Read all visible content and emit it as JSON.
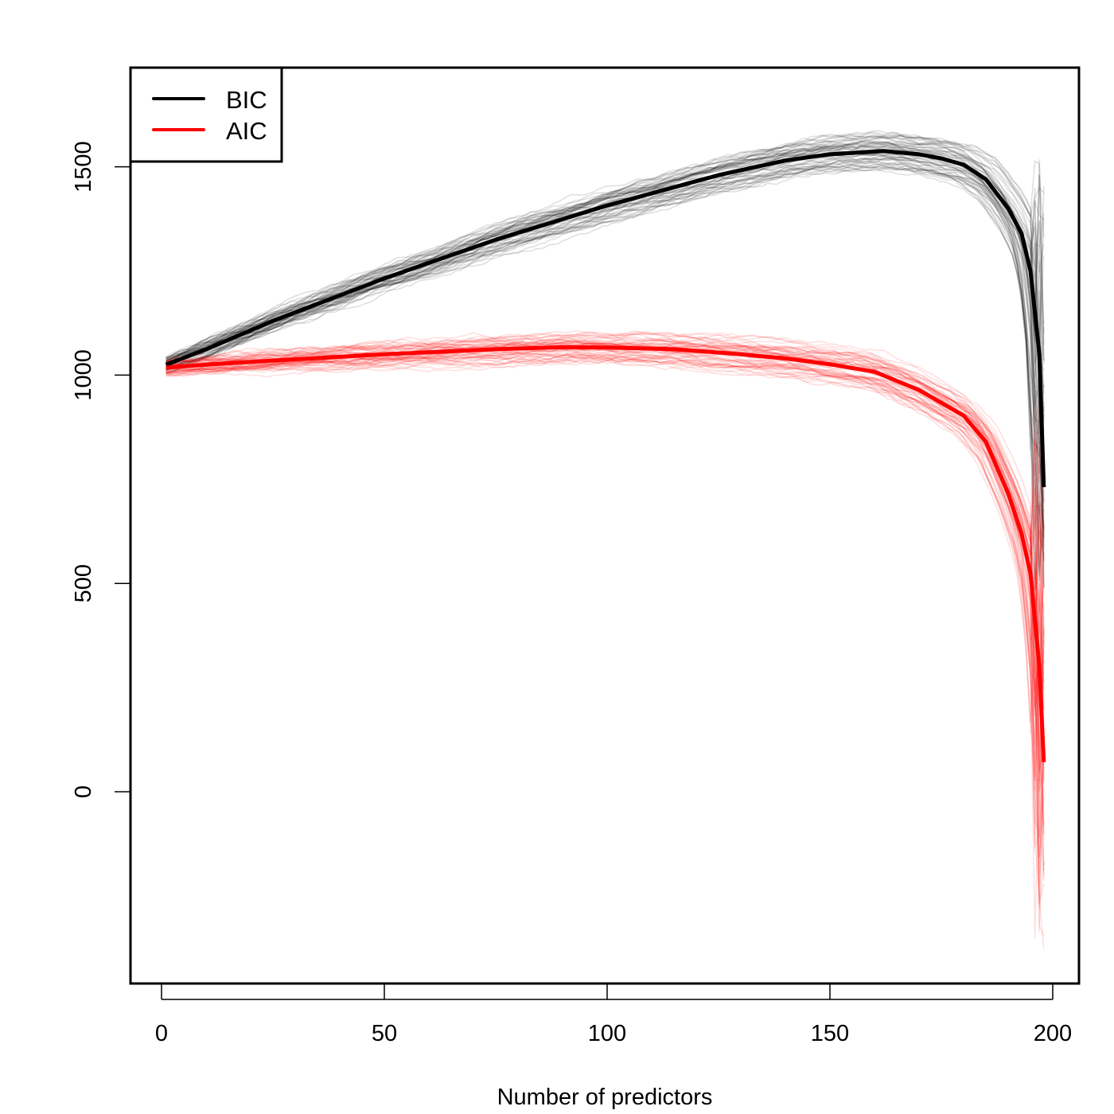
{
  "chart_data": {
    "type": "line",
    "title": "",
    "xlabel": "Number of predictors",
    "ylabel": "",
    "xlim": [
      -7,
      206
    ],
    "ylim": [
      -460,
      1745
    ],
    "x_ticks": [
      0,
      50,
      100,
      150,
      200
    ],
    "y_ticks": [
      0,
      500,
      1000,
      1500
    ],
    "x_tick_labels": [
      "0",
      "50",
      "100",
      "150",
      "200"
    ],
    "y_tick_labels": [
      "0",
      "500",
      "1000",
      "1500"
    ],
    "grid": false,
    "legend": {
      "position": "top-left",
      "entries": [
        {
          "label": "BIC",
          "color": "#000000"
        },
        {
          "label": "AIC",
          "color": "#ff0000"
        }
      ]
    },
    "annotations": [
      "Many faint simulation replicate curves surround each bold mean curve"
    ],
    "series": [
      {
        "name": "BIC",
        "color": "#000000",
        "x": [
          1,
          10,
          25,
          50,
          75,
          100,
          125,
          140,
          150,
          162,
          170,
          175,
          180,
          185,
          190,
          193,
          195,
          197,
          198
        ],
        "y": [
          1025,
          1062,
          1130,
          1232,
          1325,
          1407,
          1480,
          1515,
          1530,
          1538,
          1530,
          1520,
          1505,
          1470,
          1400,
          1340,
          1250,
          1050,
          731
        ]
      },
      {
        "name": "AIC",
        "color": "#ff0000",
        "x": [
          1,
          10,
          25,
          50,
          75,
          90,
          100,
          115,
          130,
          140,
          150,
          160,
          170,
          180,
          185,
          190,
          193,
          195,
          197,
          198
        ],
        "y": [
          1018,
          1025,
          1035,
          1050,
          1062,
          1067,
          1066,
          1062,
          1050,
          1040,
          1026,
          1008,
          964,
          903,
          840,
          716,
          620,
          525,
          300,
          71
        ]
      }
    ],
    "replicate_bands": {
      "BIC": {
        "color": "#000000",
        "opacity": 0.12,
        "spread": 45
      },
      "AIC": {
        "color": "#ff0000",
        "opacity": 0.12,
        "spread": 45
      }
    }
  }
}
